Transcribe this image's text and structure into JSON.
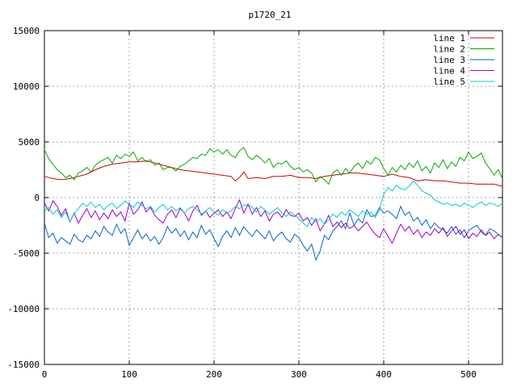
{
  "chart_data": {
    "type": "line",
    "title": "p1720_21",
    "xlabel": "",
    "ylabel": "",
    "xlim": [
      0,
      540
    ],
    "ylim": [
      -15000,
      15000
    ],
    "xticks": [
      0,
      100,
      200,
      300,
      400,
      500
    ],
    "yticks": [
      -15000,
      -10000,
      -5000,
      0,
      5000,
      10000,
      15000
    ],
    "grid": true,
    "legend_position": "top-right",
    "series": [
      {
        "name": "line 1",
        "color": "#cc0000",
        "x": [
          0,
          10,
          20,
          30,
          40,
          50,
          60,
          70,
          80,
          90,
          100,
          110,
          120,
          130,
          140,
          150,
          160,
          170,
          180,
          190,
          200,
          210,
          220,
          225,
          230,
          235,
          240,
          250,
          260,
          270,
          280,
          290,
          300,
          310,
          320,
          330,
          340,
          350,
          360,
          370,
          380,
          390,
          400,
          410,
          420,
          430,
          440,
          450,
          460,
          470,
          480,
          490,
          500,
          510,
          520,
          530,
          540
        ],
        "y": [
          1900,
          1700,
          1600,
          1700,
          1900,
          2100,
          2500,
          2800,
          3000,
          3100,
          3200,
          3200,
          3300,
          3100,
          2900,
          2700,
          2500,
          2400,
          2300,
          2200,
          2100,
          2000,
          1900,
          1500,
          1800,
          2300,
          1700,
          1800,
          1700,
          1900,
          1900,
          2000,
          1800,
          1800,
          1700,
          1900,
          2000,
          2100,
          2200,
          2200,
          2100,
          2000,
          1900,
          2100,
          1900,
          1800,
          1500,
          1600,
          1500,
          1500,
          1400,
          1300,
          1300,
          1200,
          1200,
          1200,
          1000
        ]
      },
      {
        "name": "line 2",
        "color": "#00aa00",
        "x": [
          0,
          5,
          10,
          15,
          20,
          25,
          30,
          35,
          40,
          45,
          50,
          55,
          60,
          65,
          70,
          75,
          80,
          85,
          90,
          95,
          100,
          105,
          110,
          115,
          120,
          125,
          130,
          135,
          140,
          145,
          150,
          155,
          160,
          165,
          170,
          175,
          180,
          185,
          190,
          195,
          200,
          205,
          210,
          215,
          220,
          225,
          230,
          235,
          240,
          245,
          250,
          255,
          260,
          265,
          270,
          275,
          280,
          285,
          290,
          295,
          300,
          305,
          310,
          315,
          320,
          325,
          330,
          335,
          340,
          345,
          350,
          355,
          360,
          365,
          370,
          375,
          380,
          385,
          390,
          395,
          400,
          405,
          410,
          415,
          420,
          425,
          430,
          435,
          440,
          445,
          450,
          455,
          460,
          465,
          470,
          475,
          480,
          485,
          490,
          495,
          500,
          505,
          510,
          515,
          520,
          525,
          530,
          535,
          540
        ],
        "y": [
          4300,
          3500,
          3000,
          2500,
          2200,
          1800,
          2000,
          1600,
          2200,
          2400,
          2700,
          2300,
          2900,
          3200,
          3400,
          3600,
          3100,
          3800,
          3500,
          3900,
          3700,
          4100,
          3300,
          3600,
          3200,
          3400,
          2900,
          3100,
          2500,
          2700,
          2700,
          2400,
          2800,
          3000,
          3300,
          3600,
          3500,
          3900,
          3800,
          4400,
          4100,
          4300,
          3900,
          4300,
          3800,
          3600,
          4200,
          4500,
          3700,
          3400,
          3800,
          3500,
          3100,
          3500,
          2700,
          3100,
          3000,
          3300,
          2800,
          2500,
          2700,
          2300,
          2500,
          2200,
          1400,
          1900,
          1600,
          1200,
          2200,
          2500,
          2000,
          2600,
          2200,
          2800,
          3100,
          2600,
          3300,
          3000,
          3600,
          3400,
          2600,
          2000,
          2700,
          2300,
          2900,
          2500,
          3100,
          2700,
          3300,
          2400,
          2800,
          2200,
          3100,
          2700,
          3400,
          2600,
          3200,
          2800,
          3600,
          3300,
          4100,
          3500,
          3700,
          4000,
          3100,
          2600,
          2000,
          2500,
          1700
        ]
      },
      {
        "name": "line 3",
        "color": "#0066cc",
        "x": [
          0,
          5,
          10,
          15,
          20,
          25,
          30,
          35,
          40,
          45,
          50,
          55,
          60,
          65,
          70,
          75,
          80,
          85,
          90,
          95,
          100,
          105,
          110,
          115,
          120,
          125,
          130,
          135,
          140,
          145,
          150,
          155,
          160,
          165,
          170,
          175,
          180,
          185,
          190,
          195,
          200,
          205,
          210,
          215,
          220,
          225,
          230,
          235,
          240,
          245,
          250,
          255,
          260,
          265,
          270,
          275,
          280,
          285,
          290,
          295,
          300,
          305,
          310,
          315,
          320,
          325,
          330,
          335,
          340,
          345,
          350,
          355,
          360,
          365,
          370,
          375,
          380,
          385,
          390,
          395,
          400,
          405,
          410,
          415,
          420,
          425,
          430,
          435,
          440,
          445,
          450,
          455,
          460,
          465,
          470,
          475,
          480,
          485,
          490,
          495,
          500,
          505,
          510,
          515,
          520,
          525,
          530,
          535,
          540
        ],
        "y": [
          -2300,
          -3600,
          -3200,
          -4100,
          -3600,
          -3900,
          -4200,
          -3300,
          -3800,
          -4000,
          -3400,
          -3700,
          -3000,
          -3500,
          -2600,
          -3100,
          -3400,
          -2400,
          -3200,
          -2800,
          -4300,
          -3600,
          -2900,
          -3700,
          -3300,
          -3900,
          -3500,
          -4200,
          -3600,
          -2600,
          -3200,
          -2800,
          -3500,
          -3000,
          -3800,
          -3100,
          -3600,
          -2500,
          -3300,
          -2900,
          -3700,
          -4400,
          -3500,
          -3000,
          -3600,
          -2700,
          -3400,
          -2600,
          -3100,
          -3500,
          -2900,
          -3300,
          -3700,
          -3000,
          -3900,
          -3400,
          -3100,
          -3700,
          -4000,
          -3300,
          -3600,
          -4300,
          -4800,
          -4200,
          -5600,
          -4800,
          -3400,
          -3800,
          -3000,
          -2600,
          -2100,
          -2800,
          -1400,
          -2500,
          -1900,
          -2300,
          -1100,
          -1700,
          -1600,
          -900,
          -1400,
          -1200,
          -1500,
          -1900,
          -800,
          -1600,
          -1300,
          -2100,
          -1800,
          -2500,
          -2000,
          -2800,
          -2300,
          -2700,
          -2900,
          -3200,
          -2600,
          -3300,
          -2900,
          -3600,
          -3000,
          -2700,
          -2500,
          -3100,
          -3400,
          -2800,
          -3000,
          -3300,
          -3600
        ]
      },
      {
        "name": "line 4",
        "color": "#9900cc",
        "x": [
          0,
          5,
          10,
          15,
          20,
          25,
          30,
          35,
          40,
          45,
          50,
          55,
          60,
          65,
          70,
          75,
          80,
          85,
          90,
          95,
          100,
          105,
          110,
          115,
          120,
          125,
          130,
          135,
          140,
          145,
          150,
          155,
          160,
          165,
          170,
          175,
          180,
          185,
          190,
          195,
          200,
          205,
          210,
          215,
          220,
          225,
          230,
          235,
          240,
          245,
          250,
          255,
          260,
          265,
          270,
          275,
          280,
          285,
          290,
          295,
          300,
          305,
          310,
          315,
          320,
          325,
          330,
          335,
          340,
          345,
          350,
          355,
          360,
          365,
          370,
          375,
          380,
          385,
          390,
          395,
          400,
          405,
          410,
          415,
          420,
          425,
          430,
          435,
          440,
          445,
          450,
          455,
          460,
          465,
          470,
          475,
          480,
          485,
          490,
          495,
          500,
          505,
          510,
          515,
          520,
          525,
          530,
          535,
          540
        ],
        "y": [
          -500,
          -1200,
          -300,
          -800,
          -1600,
          -1000,
          -2200,
          -1400,
          -2300,
          -1600,
          -1000,
          -1800,
          -1200,
          -2000,
          -1400,
          -1900,
          -1100,
          -1700,
          -1300,
          -2100,
          -500,
          -1500,
          -1100,
          -400,
          -1300,
          -900,
          -1600,
          -2000,
          -2300,
          -1500,
          -1100,
          -1800,
          -1000,
          -1400,
          -2100,
          -1200,
          -700,
          -1600,
          -1200,
          -1800,
          -1400,
          -1100,
          -1700,
          -1300,
          -1900,
          -1000,
          -200,
          -1400,
          -600,
          -1500,
          -900,
          -1700,
          -1200,
          -2100,
          -1500,
          -1300,
          -1800,
          -1100,
          -1600,
          -1700,
          -1400,
          -2100,
          -1800,
          -2500,
          -1900,
          -3000,
          -2400,
          -1600,
          -2600,
          -2200,
          -2700,
          -2300,
          -2800,
          -2500,
          -3000,
          -2600,
          -2200,
          -2800,
          -3300,
          -3600,
          -2800,
          -3500,
          -4100,
          -3200,
          -2400,
          -3000,
          -2600,
          -3300,
          -2900,
          -3600,
          -3100,
          -3400,
          -2800,
          -3200,
          -2700,
          -3500,
          -3000,
          -2600,
          -3300,
          -2900,
          -3700,
          -3200,
          -3500,
          -2900,
          -3400,
          -3100,
          -3700,
          -3300,
          -3600
        ]
      },
      {
        "name": "line 5",
        "color": "#00cccc",
        "x": [
          0,
          5,
          10,
          15,
          20,
          25,
          30,
          35,
          40,
          45,
          50,
          55,
          60,
          65,
          70,
          75,
          80,
          85,
          90,
          95,
          100,
          105,
          110,
          115,
          120,
          125,
          130,
          135,
          140,
          145,
          150,
          155,
          160,
          165,
          170,
          175,
          180,
          185,
          190,
          195,
          200,
          205,
          210,
          215,
          220,
          225,
          230,
          235,
          240,
          245,
          250,
          255,
          260,
          265,
          270,
          275,
          280,
          285,
          290,
          295,
          300,
          305,
          310,
          315,
          320,
          325,
          330,
          335,
          340,
          345,
          350,
          355,
          360,
          365,
          370,
          375,
          380,
          385,
          390,
          395,
          400,
          405,
          410,
          415,
          420,
          425,
          430,
          435,
          440,
          445,
          450,
          455,
          460,
          465,
          470,
          475,
          480,
          485,
          490,
          495,
          500,
          505,
          510,
          515,
          520,
          525,
          530,
          535,
          540
        ],
        "y": [
          -1200,
          -900,
          -1500,
          -1100,
          -1800,
          -1300,
          -2200,
          -1400,
          -1000,
          -500,
          -800,
          -400,
          -900,
          -600,
          -1100,
          -700,
          -500,
          -1000,
          -700,
          -300,
          -600,
          -900,
          -400,
          -700,
          -1000,
          -800,
          -1300,
          -900,
          -600,
          -1100,
          -800,
          -1200,
          -900,
          -1400,
          -1000,
          -800,
          -1100,
          -1500,
          -1200,
          -900,
          -1300,
          -1600,
          -1100,
          -1400,
          -1200,
          -800,
          -1000,
          -700,
          -600,
          -900,
          -1300,
          -800,
          -1100,
          -1500,
          -1200,
          -900,
          -1400,
          -1700,
          -1300,
          -1600,
          -1900,
          -2300,
          -2600,
          -1800,
          -2200,
          -1900,
          -2400,
          -2000,
          -1500,
          -1800,
          -1300,
          -1600,
          -1100,
          -1400,
          -1700,
          -1200,
          -1500,
          -1300,
          -1800,
          -1100,
          300,
          900,
          600,
          1100,
          800,
          700,
          1000,
          1500,
          1100,
          600,
          400,
          200,
          -200,
          -400,
          -600,
          -500,
          -700,
          -600,
          -800,
          -500,
          -700,
          -900,
          -600,
          -400,
          -700,
          -500,
          -600,
          -800,
          -500
        ]
      }
    ]
  }
}
